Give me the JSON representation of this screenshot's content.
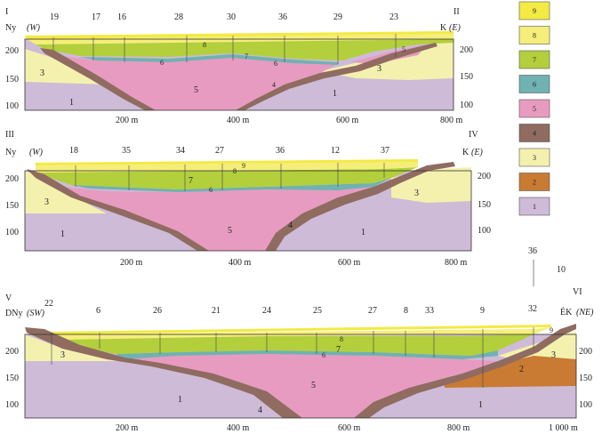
{
  "sections": [
    {
      "start": "I",
      "end": "II",
      "left_dir": "Ny",
      "left_dir_paren": "(W)",
      "right_dir": "K",
      "right_dir_paren": "(E)",
      "wells": [
        "19",
        "17",
        "16",
        "28",
        "30",
        "36",
        "29",
        "23"
      ],
      "y_left": [
        "200",
        "150",
        "100"
      ],
      "y_right": [
        "200",
        "150",
        "100"
      ],
      "x_ticks": [
        "200 m",
        "400 m",
        "600 m",
        "800 m"
      ],
      "units": [
        "8",
        "6",
        "7",
        "6",
        "5",
        "4",
        "3",
        "3",
        "1",
        "1",
        "5"
      ]
    },
    {
      "start": "III",
      "end": "IV",
      "left_dir": "Ny",
      "left_dir_paren": "(W)",
      "right_dir": "K",
      "right_dir_paren": "(E)",
      "wells": [
        "18",
        "35",
        "34",
        "27",
        "36",
        "12",
        "37"
      ],
      "y_left": [
        "200",
        "150",
        "100"
      ],
      "y_right": [
        "200",
        "150",
        "100"
      ],
      "x_ticks": [
        "200 m",
        "400 m",
        "600 m",
        "800 m"
      ],
      "units": [
        "9",
        "8",
        "7",
        "6",
        "5",
        "4",
        "3",
        "3",
        "1",
        "1"
      ]
    },
    {
      "start": "V",
      "end": "VI",
      "left_dir": "DNy",
      "left_dir_paren": "(SW)",
      "right_dir": "ÉK",
      "right_dir_paren": "(NE)",
      "wells": [
        "22",
        "6",
        "26",
        "21",
        "24",
        "25",
        "27",
        "8",
        "33",
        "9",
        "32"
      ],
      "y_left": [
        "200",
        "150",
        "100"
      ],
      "y_right": [
        "200",
        "150",
        "100"
      ],
      "x_ticks": [
        "200 m",
        "400 m",
        "600 m",
        "800 m",
        "1 000 m"
      ],
      "units": [
        "8",
        "7",
        "6",
        "5",
        "4",
        "3",
        "3",
        "2",
        "1",
        "1",
        "9"
      ]
    }
  ],
  "legend": {
    "items": [
      {
        "label": "9",
        "color": "#f3ea43"
      },
      {
        "label": "8",
        "color": "#f5ee7a"
      },
      {
        "label": "7",
        "color": "#b3cf3c"
      },
      {
        "label": "6",
        "color": "#6fb2b1"
      },
      {
        "label": "5",
        "color": "#e89bc0"
      },
      {
        "label": "4",
        "color": "#8f6b60"
      },
      {
        "label": "3",
        "color": "#f4f1ae"
      },
      {
        "label": "2",
        "color": "#c97a33"
      },
      {
        "label": "1",
        "color": "#cdbbd8"
      }
    ],
    "scale_value": "36",
    "scale_value2": "10"
  }
}
